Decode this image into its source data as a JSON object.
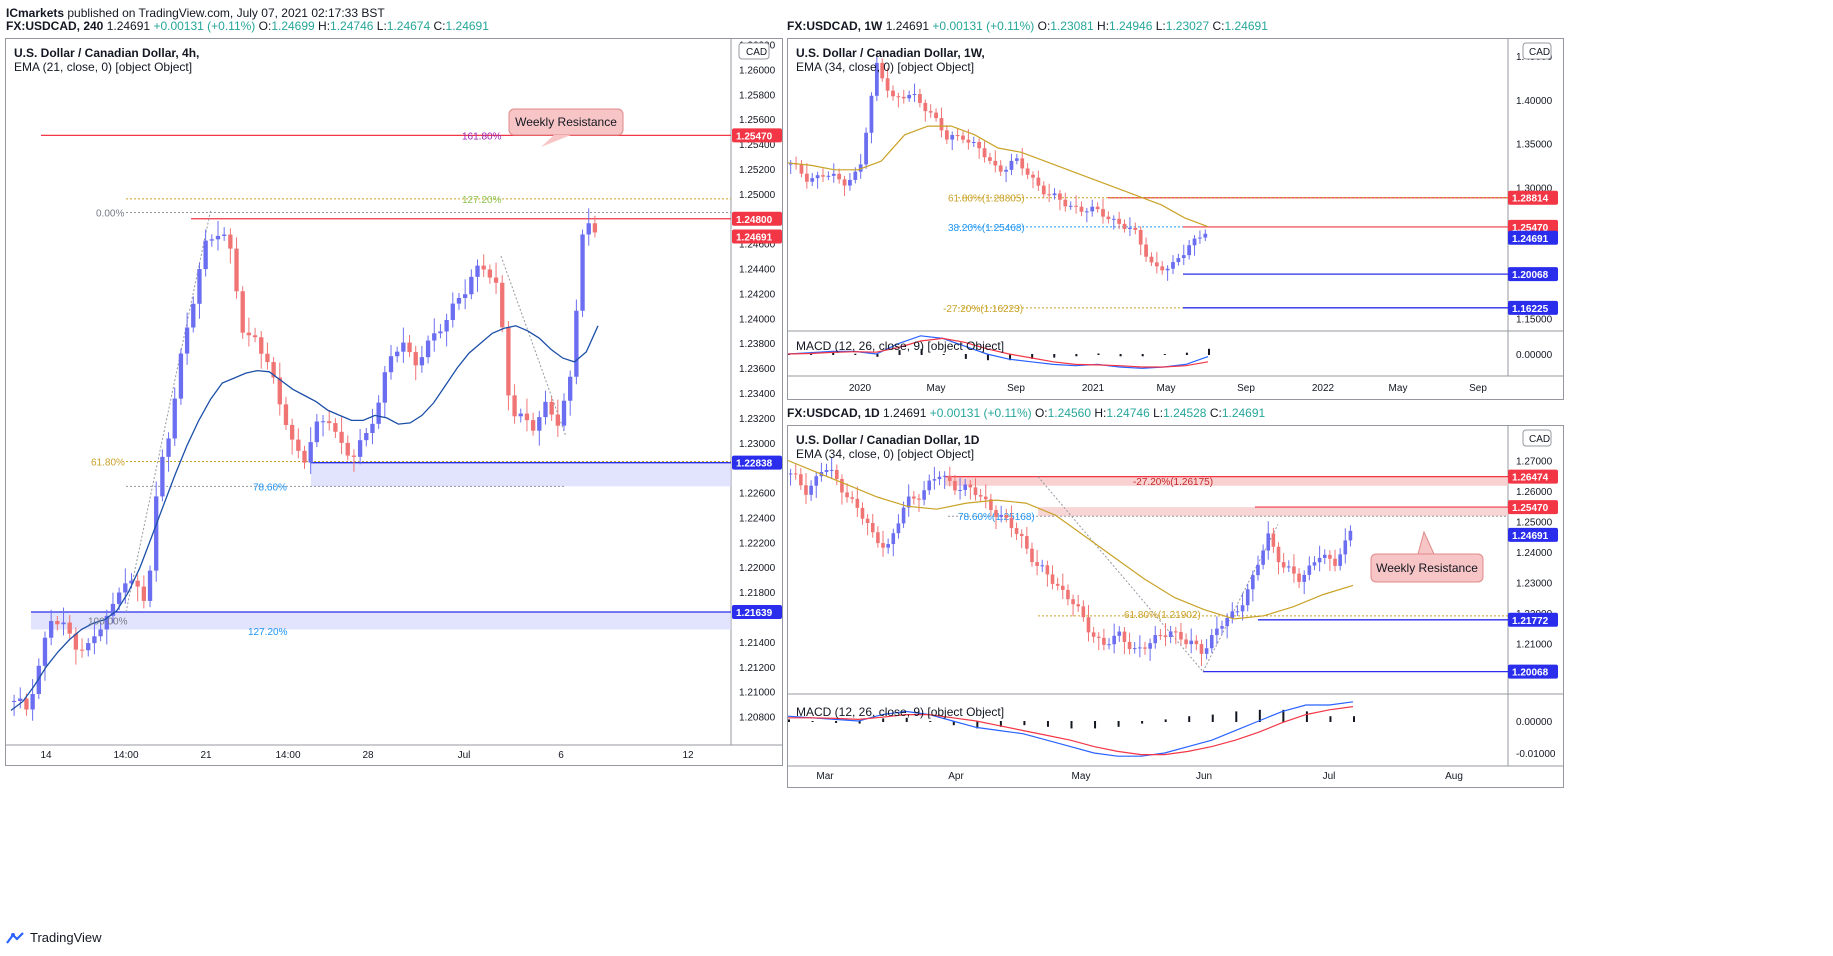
{
  "header": {
    "publisher": "ICmarkets",
    "published_text": "published on TradingView.com, July 07, 2021 02:17:33 BST"
  },
  "footer": {
    "brand": "TradingView"
  },
  "chart_data": [
    {
      "type": "candlestick",
      "symbol_line": {
        "sym": "FX:USDCAD, 240",
        "last": "1.24691",
        "chg": "+0.00131 (+0.11%)",
        "o": "1.24699",
        "h": "1.24746",
        "l": "1.24674",
        "c": "1.24691"
      },
      "title": "U.S. Dollar / Canadian Dollar, 4h,",
      "indicator": "EMA (21, close, 0) [object Object]",
      "currency": "CAD",
      "ylim": [
        1.2066,
        1.2618
      ],
      "y_ticks": [
        "1.26200",
        "1.26000",
        "1.25800",
        "1.25600",
        "1.25400",
        "1.25200",
        "1.25000",
        "1.24600",
        "1.24400",
        "1.24200",
        "1.24000",
        "1.23800",
        "1.23600",
        "1.23400",
        "1.23200",
        "1.23000",
        "1.22600",
        "1.22400",
        "1.22200",
        "1.22000",
        "1.21800",
        "1.21400",
        "1.21200",
        "1.21000",
        "1.20800"
      ],
      "x_ticks": [
        "14",
        "14:00",
        "21",
        "14:00",
        "28",
        "Jul",
        "6",
        "12"
      ],
      "ema_line": [
        1.2085,
        1.2092,
        1.2105,
        1.212,
        1.2132,
        1.2142,
        1.215,
        1.2155,
        1.2158,
        1.2165,
        1.218,
        1.22,
        1.2225,
        1.225,
        1.2275,
        1.2298,
        1.2318,
        1.2335,
        1.2348,
        1.2352,
        1.2356,
        1.2358,
        1.2357,
        1.235,
        1.2343,
        1.2338,
        1.2333,
        1.2326,
        1.2322,
        1.2318,
        1.2318,
        1.2322,
        1.232,
        1.2315,
        1.2316,
        1.2322,
        1.2332,
        1.2346,
        1.236,
        1.2372,
        1.238,
        1.2388,
        1.2392,
        1.2394,
        1.239,
        1.2384,
        1.2375,
        1.2368,
        1.2365,
        1.2373,
        1.2394
      ],
      "price_labels": [
        {
          "value": "1.25470",
          "color": "#f23645"
        },
        {
          "value": "1.24800",
          "color": "#f23645"
        },
        {
          "value": "1.24691",
          "color": "#f23645"
        },
        {
          "value": "1.22838",
          "color": "#2a2eec"
        },
        {
          "value": "1.21639",
          "color": "#2a2eec"
        }
      ],
      "annotations": {
        "weekly_resistance": "Weekly Resistance",
        "fib_161": "161.80%",
        "fib_127_top": "127.20%",
        "fib_0": "0.00%",
        "fib_618": "61.80%",
        "fib_786": "78.60%",
        "fib_100": "100.00%",
        "fib_127_bottom": "127.20%"
      }
    },
    {
      "type": "candlestick",
      "symbol_line": {
        "sym": "FX:USDCAD, 1W",
        "last": "1.24691",
        "chg": "+0.00131 (+0.11%)",
        "o": "1.23081",
        "h": "1.24946",
        "l": "1.23027",
        "c": "1.24691"
      },
      "title": "U.S. Dollar / Canadian Dollar, 1W,",
      "indicator": "EMA (34, close, 0) [object Object]",
      "currency": "CAD",
      "ylim": [
        1.138,
        1.465
      ],
      "y_ticks": [
        "1.45000",
        "1.40000",
        "1.35000",
        "1.30000",
        "1.15000"
      ],
      "x_ticks": [
        "2020",
        "May",
        "Sep",
        "2021",
        "May",
        "Sep",
        "2022",
        "May",
        "Sep"
      ],
      "price_labels": [
        {
          "value": "1.28814",
          "color": "#f23645"
        },
        {
          "value": "1.25470",
          "color": "#f23645"
        },
        {
          "value": "1.24691",
          "color": "#2a2eec"
        },
        {
          "value": "1.20068",
          "color": "#2a2eec"
        },
        {
          "value": "1.16225",
          "color": "#2a2eec"
        }
      ],
      "annotations": {
        "fib_618": "61.80%(1.28805)",
        "fib_382": "38.20%(1.25468)",
        "fib_neg272": "-27.20%(1.16223)"
      },
      "macd": {
        "label": "MACD (12, 26, close, 9) [object Object]",
        "tick": "0.00000"
      }
    },
    {
      "type": "candlestick",
      "symbol_line": {
        "sym": "FX:USDCAD, 1D",
        "last": "1.24691",
        "chg": "+0.00131 (+0.11%)",
        "o": "1.24560",
        "h": "1.24746",
        "l": "1.24528",
        "c": "1.24691"
      },
      "title": "U.S. Dollar / Canadian Dollar, 1D",
      "indicator": "EMA (34, close, 0) [object Object]",
      "currency": "CAD",
      "ylim": [
        1.194,
        1.28
      ],
      "y_ticks": [
        "1.27000",
        "1.26000",
        "1.25000",
        "1.24000",
        "1.23000",
        "1.22000",
        "1.21000"
      ],
      "x_ticks": [
        "Mar",
        "Apr",
        "May",
        "Jun",
        "Jul",
        "Aug"
      ],
      "price_labels": [
        {
          "value": "1.26474",
          "color": "#f23645"
        },
        {
          "value": "1.25470",
          "color": "#f23645"
        },
        {
          "value": "1.24691",
          "color": "#2a2eec"
        },
        {
          "value": "1.21772",
          "color": "#2a2eec"
        },
        {
          "value": "1.20068",
          "color": "#2a2eec"
        }
      ],
      "annotations": {
        "weekly_resistance": "Weekly Resistance",
        "fib_neg272": "-27.20%(1.26175)",
        "fib_786": "78.60%(1.25168)",
        "fib_618": "61.80%(1.21902)"
      },
      "macd": {
        "label": "MACD (12, 26, close, 9) [object Object]",
        "tick_top": "0.00000",
        "tick_bottom": "-0.01000"
      }
    }
  ],
  "colors": {
    "up": "#6b6ef0",
    "down": "#f07474",
    "ema_4h": "#1c4fa8",
    "ema_slow": "#c9a227",
    "red_line": "#f23645",
    "blue_line": "#2a2eec"
  }
}
